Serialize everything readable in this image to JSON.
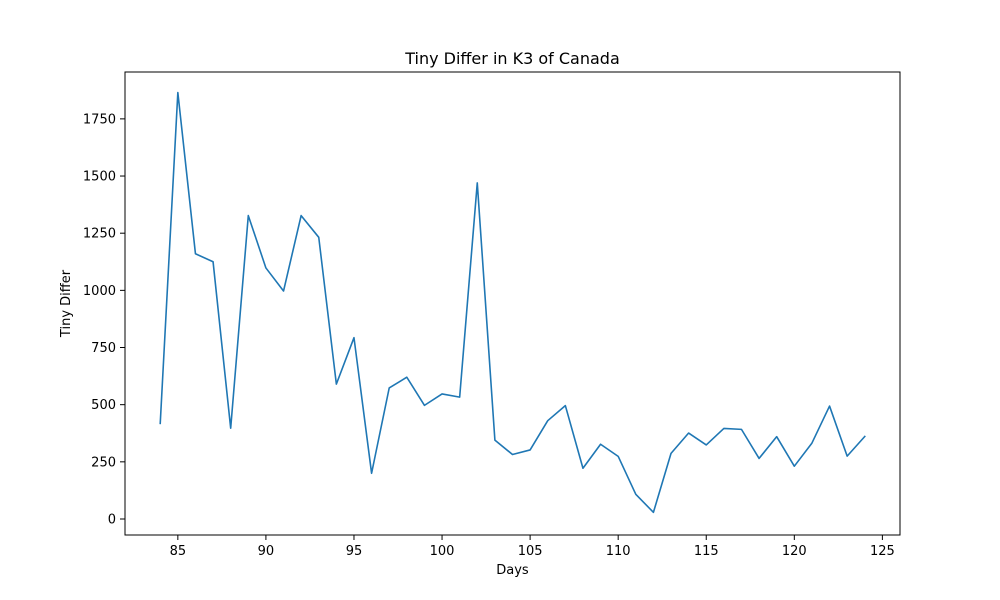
{
  "chart_data": {
    "type": "line",
    "title": "Tiny Differ in K3 of Canada",
    "xlabel": "Days",
    "ylabel": "Tiny Differ",
    "xlim": [
      82,
      126
    ],
    "ylim": [
      -70,
      1955
    ],
    "xticks": [
      85,
      90,
      95,
      100,
      105,
      110,
      115,
      120,
      125
    ],
    "yticks": [
      0,
      250,
      500,
      750,
      1000,
      1250,
      1500,
      1750
    ],
    "grid": false,
    "series": [
      {
        "color": "#1f77b4",
        "x": [
          84,
          85,
          86,
          87,
          88,
          89,
          90,
          91,
          92,
          93,
          94,
          95,
          96,
          97,
          98,
          99,
          100,
          101,
          102,
          103,
          104,
          105,
          106,
          107,
          108,
          109,
          110,
          111,
          112,
          113,
          114,
          115,
          116,
          117,
          118,
          119,
          120,
          121,
          122,
          123,
          124
        ],
        "y": [
          418,
          1865,
          1160,
          1125,
          397,
          1327,
          1098,
          997,
          1327,
          1232,
          590,
          793,
          200,
          573,
          620,
          497,
          547,
          533,
          1470,
          345,
          282,
          302,
          430,
          496,
          222,
          327,
          274,
          108,
          29,
          287,
          376,
          324,
          396,
          392,
          265,
          360,
          231,
          332,
          494,
          275,
          361
        ]
      }
    ]
  }
}
